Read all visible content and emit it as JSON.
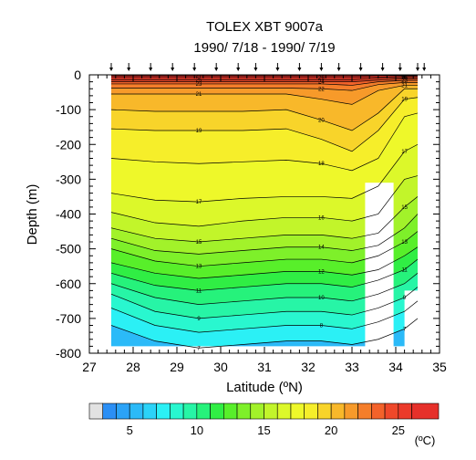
{
  "chart_data": {
    "type": "heatmap",
    "title": "TOLEX XBT 9007a",
    "subtitle": "1990/ 7/18 - 1990/ 7/19",
    "xlabel": "Latitude (ºN)",
    "ylabel": "Depth (m)",
    "xlim": [
      27,
      35
    ],
    "ylim": [
      -800,
      0
    ],
    "x_ticks": [
      "27",
      "28",
      "29",
      "30",
      "31",
      "32",
      "33",
      "34",
      "35"
    ],
    "y_ticks": [
      "0",
      "-100",
      "-200",
      "-300",
      "-400",
      "-500",
      "-600",
      "-700",
      "-800"
    ],
    "x_tick_values": [
      27,
      28,
      29,
      30,
      31,
      32,
      33,
      34,
      35
    ],
    "y_tick_values": [
      0,
      -100,
      -200,
      -300,
      -400,
      -500,
      -600,
      -700,
      -800
    ],
    "x_minor_step": 0.2,
    "y_minor_step": 20,
    "station_latitudes": [
      27.5,
      27.9,
      28.4,
      28.9,
      29.4,
      29.9,
      30.4,
      30.8,
      31.3,
      31.8,
      32.3,
      32.7,
      33.2,
      33.7,
      34.1,
      34.5,
      34.65
    ],
    "data_extent": {
      "lat_min": 27.5,
      "lat_max": 34.5,
      "depth_max": -800
    },
    "missing_regions": [
      {
        "lat": [
          33.3,
          33.95
        ],
        "depth": [
          -310,
          -800
        ]
      },
      {
        "lat": [
          34.2,
          34.5
        ],
        "depth": [
          -620,
          -800
        ]
      },
      {
        "lat": [
          27.5,
          34.5
        ],
        "depth": [
          -780,
          -800
        ]
      }
    ],
    "contour_interval": 1,
    "labeled_contours": [
      7,
      8,
      9,
      10,
      11,
      12,
      13,
      14,
      15,
      16,
      17,
      18,
      19,
      20,
      21,
      22,
      23,
      24,
      25,
      26,
      27
    ],
    "contour_depths_profile": {
      "latitudes": [
        27.5,
        28.5,
        29.5,
        30.5,
        31.5,
        32.3,
        33.0,
        33.6,
        34.2,
        34.5
      ],
      "isotherms": [
        {
          "temp": 27,
          "depth": [
            -3,
            -3,
            -3,
            -3,
            -3,
            -3,
            -3,
            -2,
            -2,
            -2
          ]
        },
        {
          "temp": 26,
          "depth": [
            -8,
            -8,
            -8,
            -8,
            -8,
            -8,
            -8,
            -6,
            -5,
            -5
          ]
        },
        {
          "temp": 25,
          "depth": [
            -14,
            -14,
            -14,
            -14,
            -14,
            -14,
            -14,
            -10,
            -8,
            -8
          ]
        },
        {
          "temp": 24,
          "depth": [
            -20,
            -20,
            -20,
            -20,
            -20,
            -20,
            -20,
            -15,
            -12,
            -12
          ]
        },
        {
          "temp": 23,
          "depth": [
            -26,
            -26,
            -26,
            -26,
            -26,
            -26,
            -30,
            -20,
            -16,
            -16
          ]
        },
        {
          "temp": 22,
          "depth": [
            -38,
            -38,
            -38,
            -38,
            -38,
            -40,
            -45,
            -28,
            -22,
            -22
          ]
        },
        {
          "temp": 21,
          "depth": [
            -55,
            -55,
            -55,
            -55,
            -55,
            -70,
            -85,
            -45,
            -30,
            -30
          ]
        },
        {
          "temp": 20,
          "depth": [
            -100,
            -105,
            -105,
            -105,
            -100,
            -130,
            -160,
            -110,
            -40,
            -40
          ]
        },
        {
          "temp": 19,
          "depth": [
            -155,
            -160,
            -160,
            -160,
            -155,
            -185,
            -220,
            -160,
            -70,
            -65
          ]
        },
        {
          "temp": 18,
          "depth": [
            -240,
            -250,
            -255,
            -250,
            -245,
            -255,
            -275,
            -240,
            -120,
            -110
          ]
        },
        {
          "temp": 17,
          "depth": [
            -340,
            -360,
            -365,
            -355,
            -350,
            -350,
            -355,
            -320,
            -220,
            -200
          ]
        },
        {
          "temp": 16,
          "depth": [
            -395,
            -425,
            -435,
            -420,
            -410,
            -410,
            -420,
            -400,
            -300,
            -290
          ]
        },
        {
          "temp": 15,
          "depth": [
            -440,
            -470,
            -480,
            -470,
            -460,
            -460,
            -470,
            -455,
            -380,
            -350
          ]
        },
        {
          "temp": 14,
          "depth": [
            -470,
            -505,
            -515,
            -505,
            -495,
            -495,
            -505,
            -490,
            -440,
            -400
          ]
        },
        {
          "temp": 13,
          "depth": [
            -500,
            -535,
            -550,
            -540,
            -530,
            -530,
            -540,
            -520,
            -480,
            -450
          ]
        },
        {
          "temp": 12,
          "depth": [
            -540,
            -570,
            -585,
            -575,
            -565,
            -565,
            -575,
            -560,
            -520,
            -495
          ]
        },
        {
          "temp": 11,
          "depth": [
            -570,
            -605,
            -620,
            -610,
            -600,
            -600,
            -610,
            -590,
            -560,
            -530
          ]
        },
        {
          "temp": 10,
          "depth": [
            -600,
            -640,
            -660,
            -650,
            -640,
            -640,
            -650,
            -630,
            -600,
            -570
          ]
        },
        {
          "temp": 9,
          "depth": [
            -630,
            -680,
            -700,
            -690,
            -680,
            -680,
            -690,
            -670,
            -640,
            -610
          ]
        },
        {
          "temp": 8,
          "depth": [
            -670,
            -720,
            -740,
            -730,
            -720,
            -720,
            -730,
            -710,
            -680,
            -650
          ]
        },
        {
          "temp": 7,
          "depth": [
            -720,
            -765,
            -785,
            -775,
            -765,
            -765,
            -775,
            -760,
            -730,
            -700
          ]
        }
      ]
    },
    "colorbar": {
      "label": "(ºC)",
      "ticks": [
        "5",
        "10",
        "15",
        "20",
        "25"
      ],
      "tick_values": [
        5,
        10,
        15,
        20,
        25
      ],
      "range": [
        2,
        28
      ],
      "bins": [
        {
          "min": null,
          "max": 3,
          "color": "#e2e2e2"
        },
        {
          "min": 3,
          "max": 4,
          "color": "#2b8ff5"
        },
        {
          "min": 4,
          "max": 5,
          "color": "#2ba3f7"
        },
        {
          "min": 5,
          "max": 6,
          "color": "#2bbaf8"
        },
        {
          "min": 6,
          "max": 7,
          "color": "#2bd3f8"
        },
        {
          "min": 7,
          "max": 8,
          "color": "#2bf0f5"
        },
        {
          "min": 8,
          "max": 9,
          "color": "#29f7cf"
        },
        {
          "min": 9,
          "max": 10,
          "color": "#27f5a6"
        },
        {
          "min": 10,
          "max": 11,
          "color": "#26f27b"
        },
        {
          "min": 11,
          "max": 12,
          "color": "#30ee44"
        },
        {
          "min": 12,
          "max": 13,
          "color": "#58ef2a"
        },
        {
          "min": 13,
          "max": 14,
          "color": "#7ef02a"
        },
        {
          "min": 14,
          "max": 15,
          "color": "#a2f22a"
        },
        {
          "min": 15,
          "max": 16,
          "color": "#c2f52a"
        },
        {
          "min": 16,
          "max": 17,
          "color": "#dcf82a"
        },
        {
          "min": 17,
          "max": 18,
          "color": "#eef82a"
        },
        {
          "min": 18,
          "max": 19,
          "color": "#f6ee2a"
        },
        {
          "min": 19,
          "max": 20,
          "color": "#f8d42a"
        },
        {
          "min": 20,
          "max": 21,
          "color": "#f8b82a"
        },
        {
          "min": 21,
          "max": 22,
          "color": "#f79a2a"
        },
        {
          "min": 22,
          "max": 23,
          "color": "#f57e2a"
        },
        {
          "min": 23,
          "max": 24,
          "color": "#f3622a"
        },
        {
          "min": 24,
          "max": 25,
          "color": "#ef482a"
        },
        {
          "min": 25,
          "max": 26,
          "color": "#eb3a2a"
        },
        {
          "min": 26,
          "max": null,
          "color": "#e6302a"
        }
      ]
    }
  }
}
